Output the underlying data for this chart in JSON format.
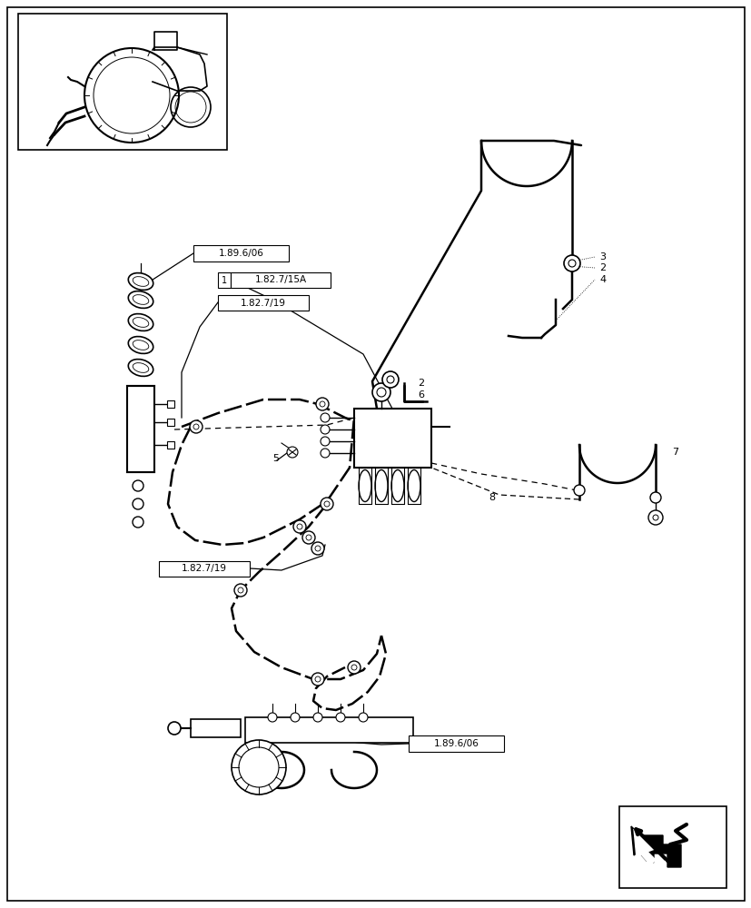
{
  "background_color": "#ffffff",
  "line_color": "#000000",
  "page_width": 8.28,
  "page_height": 10.0,
  "dpi": 100,
  "ref_labels": {
    "top_189606": "1.89.6/06",
    "ref_15A": "1.82.7/15A",
    "ref_19_top": "1.82.7/19",
    "ref_19_bot": "1.82.7/19",
    "bot_189606": "1.89.6/06",
    "num1": "1"
  },
  "part_nums": {
    "p2a": "2",
    "p3": "3",
    "p4": "4",
    "p2b": "2",
    "p6": "6",
    "p5": "5",
    "p7": "7",
    "p8": "8"
  }
}
